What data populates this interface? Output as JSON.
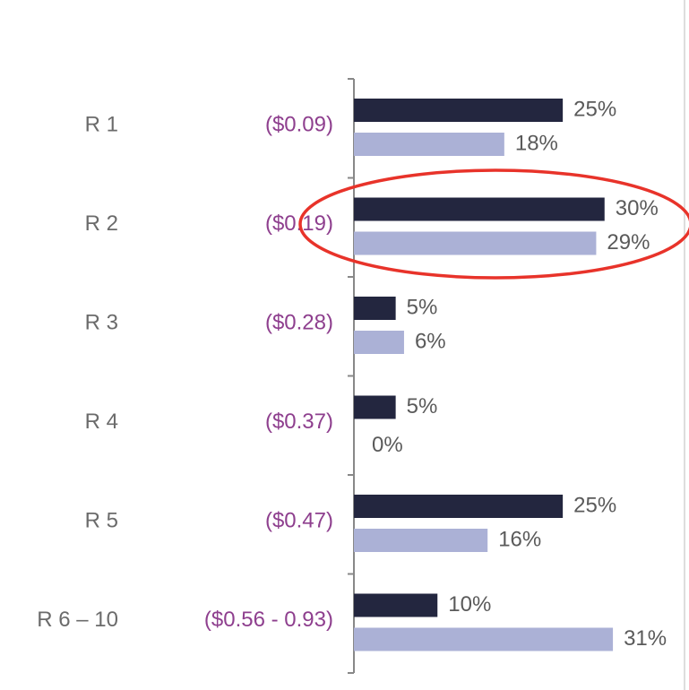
{
  "chart_data": {
    "type": "bar",
    "orientation": "horizontal",
    "categories": [
      "R 1",
      "R 2",
      "R 3",
      "R 4",
      "R 5",
      "R 6 – 10"
    ],
    "sublabels": [
      "($0.09)",
      "($0.19)",
      "($0.28)",
      "($0.37)",
      "($0.47)",
      "($0.56 - 0.93)"
    ],
    "series": [
      {
        "color": "#23263f",
        "values": [
          25,
          30,
          5,
          5,
          25,
          10
        ],
        "value_labels": [
          "25%",
          "30%",
          "5%",
          "5%",
          "25%",
          "10%"
        ]
      },
      {
        "color": "#abb1d6",
        "values": [
          18,
          29,
          6,
          0,
          16,
          31
        ],
        "value_labels": [
          "18%",
          "29%",
          "6%",
          "0%",
          "16%",
          "31%"
        ]
      }
    ],
    "xlim": [
      0,
      40
    ]
  }
}
